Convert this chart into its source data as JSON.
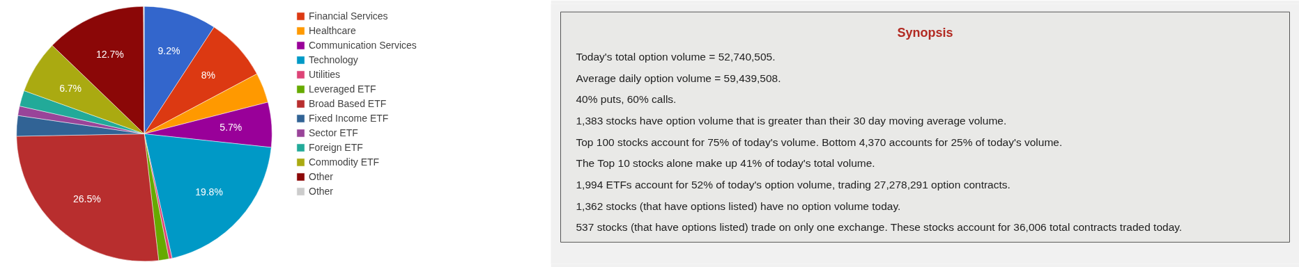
{
  "chart_data": [
    {
      "type": "pie",
      "categories": [
        null,
        "Financial Services",
        "Healthcare",
        "Communication Services",
        "Technology",
        "Utilities",
        "Leveraged ETF",
        "Broad Based ETF",
        "Fixed Income ETF",
        "Sector ETF",
        "Foreign ETF",
        "Commodity ETF",
        "Other",
        "Other"
      ],
      "values": [
        9.2,
        8,
        3.8,
        5.7,
        19.8,
        0.4,
        1.3,
        26.5,
        2.6,
        1.2,
        2.0,
        6.7,
        12.7,
        0.1
      ],
      "colors": [
        "#3366cc",
        "#dc3912",
        "#ff9900",
        "#990099",
        "#0099c6",
        "#dd4477",
        "#66aa00",
        "#b82e2e",
        "#316395",
        "#994499",
        "#22aa99",
        "#aaaa11",
        "#8b0707",
        "#cccccc"
      ],
      "value_labels": [
        "9.2%",
        "8%",
        null,
        "5.7%",
        "19.8%",
        null,
        null,
        "26.5%",
        null,
        null,
        null,
        "6.7%",
        "12.7%",
        null
      ],
      "legend": "right"
    },
    {
      "type": "other",
      "title": "Synopsis",
      "annotations": [
        "Today's total option volume = 52,740,505.",
        "Average daily option volume = 59,439,508.",
        "40% puts, 60% calls.",
        "1,383 stocks have option volume that is greater than their 30 day moving average volume.",
        "Top 100 stocks account for 75% of today's volume. Bottom 4,370 accounts for 25% of today's volume.",
        "The Top 10 stocks alone make up 41% of today's total volume.",
        "1,994 ETFs account for 52% of today's option volume, trading 27,278,291 option contracts.",
        "1,362 stocks (that have options listed) have no option volume today.",
        "537 stocks (that have options listed) trade on only one exchange. These stocks account for 36,006 total contracts traded today."
      ]
    }
  ]
}
